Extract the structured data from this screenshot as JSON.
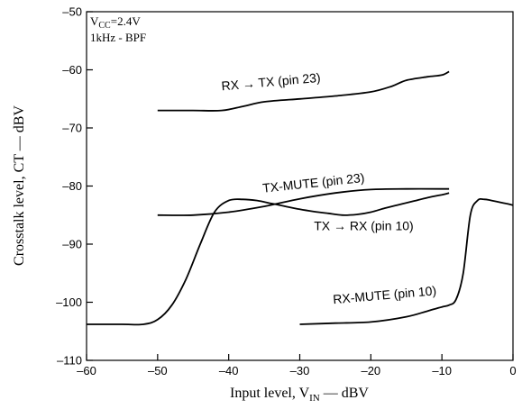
{
  "chart_data": {
    "type": "line",
    "title": "",
    "xlabel": "Input level, V",
    "xlabel_sub": "IN",
    "xlabel_unit": " — dBV",
    "ylabel": "Crosstalk level, CT — dBV",
    "xlim": [
      -60,
      0
    ],
    "ylim": [
      -110,
      -50
    ],
    "x_ticks": [
      -60,
      -50,
      -40,
      -30,
      -20,
      -10,
      0
    ],
    "y_ticks": [
      -50,
      -60,
      -70,
      -80,
      -90,
      -100,
      -110
    ],
    "x_tick_labels": [
      "–60",
      "–50",
      "–40",
      "–30",
      "–20",
      "–10",
      "0"
    ],
    "y_tick_labels": [
      "–50",
      "–60",
      "–70",
      "–80",
      "–90",
      "–100",
      "–110"
    ],
    "grid": false,
    "conditions": {
      "line1_main": "V",
      "line1_sub": "CC",
      "line1_rest": "=2.4V",
      "line2": "1kHz - BPF"
    },
    "series": [
      {
        "name": "RX → TX (pin 23)",
        "x": [
          -50,
          -45,
          -41,
          -38,
          -35,
          -30,
          -25,
          -20,
          -17,
          -15,
          -12,
          -10,
          -9
        ],
        "y": [
          -67,
          -67,
          -67,
          -66.3,
          -65.5,
          -65,
          -64.5,
          -63.8,
          -62.8,
          -61.8,
          -61.2,
          -60.9,
          -60.3
        ]
      },
      {
        "name": "TX-MUTE (pin 23)",
        "x": [
          -50,
          -45,
          -40,
          -35,
          -30,
          -25,
          -20,
          -15,
          -10,
          -9
        ],
        "y": [
          -85,
          -85,
          -84.5,
          -83.5,
          -82.2,
          -81.2,
          -80.6,
          -80.5,
          -80.5,
          -80.5
        ]
      },
      {
        "name": "TX → RX (pin 10)",
        "x": [
          -60,
          -55,
          -52,
          -50,
          -48,
          -46,
          -44,
          -42,
          -40,
          -38,
          -36,
          -34,
          -32,
          -30,
          -28,
          -26,
          -24,
          -22,
          -20,
          -18,
          -16,
          -14,
          -12,
          -10,
          -9
        ],
        "y": [
          -103.8,
          -103.8,
          -103.8,
          -103,
          -100.5,
          -96,
          -90,
          -84.5,
          -82.5,
          -82.3,
          -82.5,
          -83,
          -83.5,
          -84,
          -84.4,
          -84.7,
          -85,
          -84.9,
          -84.5,
          -83.8,
          -83.2,
          -82.6,
          -82,
          -81.5,
          -81.2
        ]
      },
      {
        "name": "RX-MUTE (pin 10)",
        "x": [
          -30,
          -25,
          -20,
          -15,
          -12,
          -10,
          -9,
          -8,
          -7,
          -6,
          -5,
          -4,
          -3,
          -1,
          0
        ],
        "y": [
          -103.8,
          -103.6,
          -103.4,
          -102.5,
          -101.5,
          -100.8,
          -100.5,
          -99.5,
          -95,
          -85,
          -82.5,
          -82.3,
          -82.5,
          -83,
          -83.3
        ]
      }
    ],
    "annotations": [
      {
        "series": 0,
        "x": -34,
        "y": -62.8,
        "angle": -5
      },
      {
        "series": 1,
        "x": -28,
        "y": -80.2,
        "angle": -6
      },
      {
        "series": 2,
        "x": -21,
        "y": -87.6,
        "angle": 0
      },
      {
        "series": 3,
        "x": -18,
        "y": -99.5,
        "angle": -5
      }
    ]
  }
}
